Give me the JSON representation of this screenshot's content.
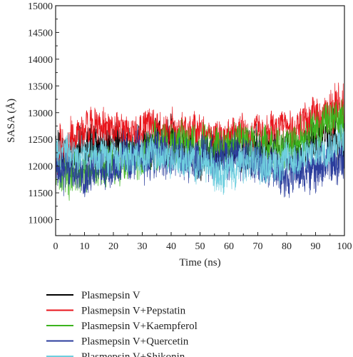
{
  "chart_data": {
    "type": "line",
    "xlabel": "Time (ns)",
    "ylabel": "SASA (Å)",
    "xlim": [
      0,
      100
    ],
    "ylim": [
      10700,
      15000
    ],
    "xticks": [
      0,
      10,
      20,
      30,
      40,
      50,
      60,
      70,
      80,
      90,
      100
    ],
    "yticks": [
      11000,
      11500,
      12000,
      12500,
      13000,
      13500,
      14000,
      14500,
      15000
    ],
    "xtick_labels": [
      "0",
      "10",
      "20",
      "30",
      "40",
      "50",
      "60",
      "70",
      "80",
      "90",
      "100"
    ],
    "ytick_labels": [
      "11000",
      "11500",
      "12000",
      "12500",
      "13000",
      "13500",
      "14000",
      "14500",
      "15000"
    ],
    "grid": false,
    "legend_position": "below",
    "series": [
      {
        "name": "Plasmepsin V",
        "color": "#000000",
        "x": [
          0,
          5,
          10,
          15,
          20,
          25,
          30,
          35,
          40,
          45,
          50,
          55,
          60,
          65,
          70,
          75,
          80,
          85,
          90,
          95,
          100
        ],
        "mean": [
          12300,
          12200,
          12350,
          12400,
          12400,
          12350,
          12300,
          12500,
          12500,
          12300,
          12100,
          12250,
          12300,
          12300,
          12350,
          12300,
          12250,
          12200,
          12500,
          12550,
          12350
        ],
        "spread": [
          400,
          450,
          450,
          450,
          400,
          400,
          400,
          500,
          450,
          450,
          500,
          400,
          400,
          400,
          400,
          400,
          450,
          450,
          450,
          500,
          500
        ]
      },
      {
        "name": "Plasmepsin V+Pepstatin",
        "color": "#e8141b",
        "x": [
          0,
          5,
          10,
          15,
          20,
          25,
          30,
          35,
          40,
          45,
          50,
          55,
          60,
          65,
          70,
          75,
          80,
          85,
          90,
          95,
          100
        ],
        "mean": [
          12200,
          12400,
          12700,
          12750,
          12700,
          12650,
          12700,
          12750,
          12700,
          12650,
          12650,
          12600,
          12600,
          12650,
          12650,
          12650,
          12700,
          12750,
          12900,
          13050,
          13100
        ],
        "spread": [
          450,
          450,
          400,
          400,
          350,
          350,
          350,
          350,
          350,
          350,
          350,
          300,
          300,
          350,
          350,
          350,
          350,
          400,
          400,
          450,
          450
        ]
      },
      {
        "name": "Plasmepsin V+Kaempferol",
        "color": "#3cb41e",
        "x": [
          0,
          5,
          10,
          15,
          20,
          25,
          30,
          35,
          40,
          45,
          50,
          55,
          60,
          65,
          70,
          75,
          80,
          85,
          90,
          95,
          100
        ],
        "mean": [
          11900,
          11800,
          11900,
          12000,
          12050,
          12100,
          12200,
          12400,
          12450,
          12400,
          12350,
          12300,
          12400,
          12450,
          12450,
          12400,
          12400,
          12500,
          12700,
          12800,
          12850
        ],
        "spread": [
          450,
          450,
          450,
          450,
          400,
          400,
          400,
          450,
          400,
          400,
          400,
          400,
          400,
          400,
          400,
          400,
          400,
          400,
          400,
          400,
          450
        ]
      },
      {
        "name": "Plasmepsin V+Quercetin",
        "color": "#2b3d9c",
        "x": [
          0,
          5,
          10,
          15,
          20,
          25,
          30,
          35,
          40,
          45,
          50,
          55,
          60,
          65,
          70,
          75,
          80,
          85,
          90,
          95,
          100
        ],
        "mean": [
          12000,
          11900,
          11950,
          12000,
          12050,
          12150,
          12200,
          12200,
          12150,
          12100,
          12100,
          12150,
          12200,
          12150,
          12050,
          12000,
          11900,
          11900,
          12000,
          12050,
          12100
        ],
        "spread": [
          450,
          450,
          450,
          450,
          450,
          450,
          500,
          550,
          500,
          500,
          450,
          450,
          450,
          450,
          450,
          400,
          450,
          450,
          450,
          450,
          450
        ]
      },
      {
        "name": "Plasmepsin V+Shikonin",
        "color": "#6fcfdf",
        "x": [
          0,
          5,
          10,
          15,
          20,
          25,
          30,
          35,
          40,
          45,
          50,
          55,
          60,
          65,
          70,
          75,
          80,
          85,
          90,
          95,
          100
        ],
        "mean": [
          12300,
          12250,
          12200,
          12200,
          12150,
          12150,
          12200,
          12200,
          12150,
          12100,
          12050,
          11950,
          11950,
          12000,
          12050,
          12050,
          12100,
          12150,
          12250,
          12400,
          12500
        ],
        "spread": [
          350,
          350,
          350,
          350,
          350,
          350,
          350,
          350,
          350,
          350,
          350,
          400,
          400,
          400,
          400,
          400,
          400,
          350,
          350,
          350,
          350
        ]
      }
    ]
  }
}
